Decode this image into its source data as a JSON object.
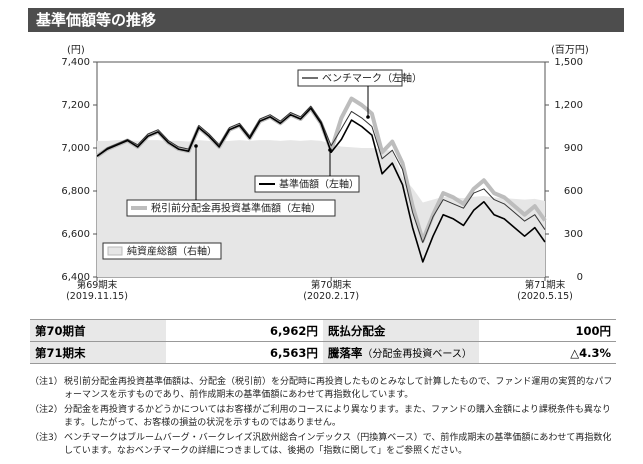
{
  "header": {
    "title": "基準価額等の推移"
  },
  "chart_data": {
    "type": "line",
    "y_unit": "(円)",
    "y2_unit": "(百万円)",
    "categories": [
      "第69期末\n(2019.11.15)",
      null,
      null,
      null,
      null,
      null,
      null,
      null,
      null,
      null,
      null,
      null,
      null,
      null,
      null,
      null,
      null,
      null,
      null,
      null,
      null,
      null,
      null,
      "第70期末\n(2020.2.17)",
      null,
      null,
      null,
      null,
      null,
      null,
      null,
      null,
      null,
      null,
      null,
      null,
      null,
      null,
      null,
      null,
      null,
      null,
      null,
      null,
      "第71期末\n(2020.5.15)"
    ],
    "ylim": [
      6400,
      7400
    ],
    "yticks": [
      {
        "value": 6400,
        "label": "6,400"
      },
      {
        "value": 6600,
        "label": "6,600"
      },
      {
        "value": 6800,
        "label": "6,800"
      },
      {
        "value": 7000,
        "label": "7,000"
      },
      {
        "value": 7200,
        "label": "7,200"
      },
      {
        "value": 7400,
        "label": "7,400"
      }
    ],
    "y2lim": [
      0,
      1500
    ],
    "y2ticks": [
      0,
      300,
      600,
      900,
      {
        "value": 1200,
        "label": "1,200"
      },
      {
        "value": 1500,
        "label": "1,500"
      }
    ],
    "series": [
      {
        "name": "ベンチマーク（左軸）",
        "color": "#333333",
        "values": [
          6962,
          7000,
          7020,
          7040,
          7015,
          7065,
          7085,
          7035,
          7005,
          6995,
          7105,
          7065,
          7015,
          7095,
          7115,
          7055,
          7135,
          7155,
          7125,
          7165,
          7145,
          7195,
          7125,
          7010,
          7090,
          7170,
          7140,
          7100,
          6950,
          6990,
          6900,
          6700,
          6560,
          6680,
          6760,
          6740,
          6720,
          6790,
          6810,
          6760,
          6740,
          6700,
          6660,
          6690,
          6620
        ]
      },
      {
        "name": "基準価額（左軸）",
        "color": "#000000",
        "values": [
          6962,
          6995,
          7015,
          7035,
          7005,
          7055,
          7075,
          7025,
          6995,
          6985,
          7095,
          7055,
          7005,
          7085,
          7105,
          7045,
          7125,
          7145,
          7115,
          7155,
          7135,
          7185,
          7115,
          6980,
          7040,
          7130,
          7100,
          7060,
          6880,
          6930,
          6830,
          6630,
          6470,
          6590,
          6690,
          6670,
          6640,
          6710,
          6750,
          6690,
          6670,
          6630,
          6590,
          6630,
          6563
        ]
      },
      {
        "name": "税引前分配金再投資基準価額（左軸）",
        "color": "#bdbdbd",
        "values": [
          6962,
          6995,
          7015,
          7035,
          7005,
          7055,
          7075,
          7025,
          6995,
          6985,
          7095,
          7055,
          7005,
          7085,
          7105,
          7045,
          7125,
          7145,
          7115,
          7155,
          7135,
          7185,
          7115,
          6990,
          7140,
          7230,
          7200,
          7160,
          6980,
          7030,
          6930,
          6730,
          6570,
          6690,
          6790,
          6770,
          6740,
          6810,
          6850,
          6790,
          6770,
          6730,
          6690,
          6730,
          6663
        ]
      },
      {
        "name": "純資産総額（右軸）",
        "color": "#e6e6e6",
        "axis": "y2",
        "area": true,
        "values": [
          950,
          950,
          955,
          955,
          950,
          955,
          955,
          950,
          950,
          945,
          955,
          950,
          945,
          950,
          955,
          950,
          955,
          955,
          950,
          955,
          950,
          955,
          950,
          930,
          910,
          905,
          900,
          900,
          890,
          880,
          700,
          620,
          520,
          540,
          560,
          555,
          550,
          560,
          565,
          555,
          550,
          545,
          540,
          545,
          530
        ]
      }
    ]
  },
  "table": {
    "rows": [
      [
        {
          "text": "第70期首"
        },
        {
          "text": "6,962円"
        },
        {
          "text": "既払分配金"
        },
        {
          "text": "100円"
        }
      ],
      [
        {
          "text": "第71期末"
        },
        {
          "text": "6,563円"
        },
        {
          "text": "騰落率",
          "note": "（分配金再投資ベース）"
        },
        {
          "text": "△4.3%"
        }
      ]
    ]
  },
  "notes": [
    {
      "label": "（注1）",
      "text": "税引前分配金再投資基準価額は、分配金（税引前）を分配時に再投資したものとみなして計算したもので、ファンド運用の実質的なパフォーマンスを示すものであり、前作成期末の基準価額にあわせて再指数化しています。"
    },
    {
      "label": "（注2）",
      "text": "分配金を再投資するかどうかについてはお客様がご利用のコースにより異なります。また、ファンドの購入金額により課税条件も異なります。したがって、お客様の損益の状況を示すものではありません。"
    },
    {
      "label": "（注3）",
      "text": "ベンチマークはブルームバーグ・バークレイズ汎欧州総合インデックス（円換算ベース）で、前作成期末の基準価額にあわせて再指数化しています。なおベンチマークの詳細につきましては、後掲の「指数に関して」をご参照ください。"
    }
  ]
}
